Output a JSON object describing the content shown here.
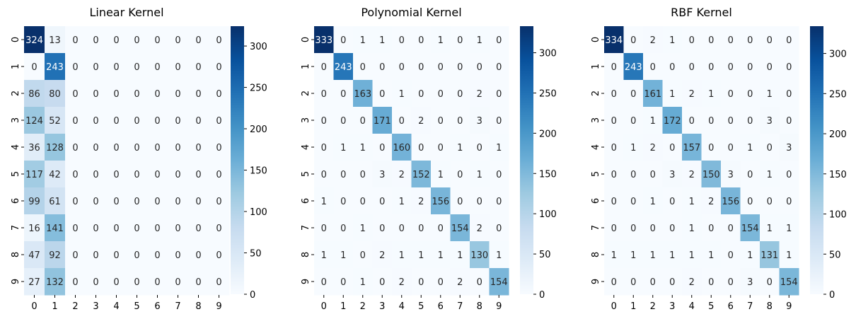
{
  "chart_data": [
    {
      "type": "heatmap",
      "title": "Linear Kernel",
      "xlabel": "",
      "ylabel": "",
      "x_ticks": [
        "0",
        "1",
        "2",
        "3",
        "4",
        "5",
        "6",
        "7",
        "8",
        "9"
      ],
      "y_ticks": [
        "0",
        "1",
        "2",
        "3",
        "4",
        "5",
        "6",
        "7",
        "8",
        "9"
      ],
      "matrix": [
        [
          324,
          13,
          0,
          0,
          0,
          0,
          0,
          0,
          0,
          0
        ],
        [
          0,
          243,
          0,
          0,
          0,
          0,
          0,
          0,
          0,
          0
        ],
        [
          86,
          80,
          0,
          0,
          0,
          0,
          0,
          0,
          0,
          0
        ],
        [
          124,
          52,
          0,
          0,
          0,
          0,
          0,
          0,
          0,
          0
        ],
        [
          36,
          128,
          0,
          0,
          0,
          0,
          0,
          0,
          0,
          0
        ],
        [
          117,
          42,
          0,
          0,
          0,
          0,
          0,
          0,
          0,
          0
        ],
        [
          99,
          61,
          0,
          0,
          0,
          0,
          0,
          0,
          0,
          0
        ],
        [
          16,
          141,
          0,
          0,
          0,
          0,
          0,
          0,
          0,
          0
        ],
        [
          47,
          92,
          0,
          0,
          0,
          0,
          0,
          0,
          0,
          0
        ],
        [
          27,
          132,
          0,
          0,
          0,
          0,
          0,
          0,
          0,
          0
        ]
      ],
      "colorbar": {
        "min": 0,
        "max": 324,
        "ticks": [
          0,
          50,
          100,
          150,
          200,
          250,
          300
        ]
      },
      "colormap": "Blues"
    },
    {
      "type": "heatmap",
      "title": "Polynomial Kernel",
      "xlabel": "",
      "ylabel": "",
      "x_ticks": [
        "0",
        "1",
        "2",
        "3",
        "4",
        "5",
        "6",
        "7",
        "8",
        "9"
      ],
      "y_ticks": [
        "0",
        "1",
        "2",
        "3",
        "4",
        "5",
        "6",
        "7",
        "8",
        "9"
      ],
      "matrix": [
        [
          333,
          0,
          1,
          1,
          0,
          0,
          1,
          0,
          1,
          0
        ],
        [
          0,
          243,
          0,
          0,
          0,
          0,
          0,
          0,
          0,
          0
        ],
        [
          0,
          0,
          163,
          0,
          1,
          0,
          0,
          0,
          2,
          0
        ],
        [
          0,
          0,
          0,
          171,
          0,
          2,
          0,
          0,
          3,
          0
        ],
        [
          0,
          1,
          1,
          0,
          160,
          0,
          0,
          1,
          0,
          1
        ],
        [
          0,
          0,
          0,
          3,
          2,
          152,
          1,
          0,
          1,
          0
        ],
        [
          1,
          0,
          0,
          0,
          1,
          2,
          156,
          0,
          0,
          0
        ],
        [
          0,
          0,
          1,
          0,
          0,
          0,
          0,
          154,
          2,
          0
        ],
        [
          1,
          1,
          0,
          2,
          1,
          1,
          1,
          1,
          130,
          1
        ],
        [
          0,
          0,
          1,
          0,
          2,
          0,
          0,
          2,
          0,
          154
        ]
      ],
      "colorbar": {
        "min": 0,
        "max": 333,
        "ticks": [
          0,
          50,
          100,
          150,
          200,
          250,
          300
        ]
      },
      "colormap": "Blues"
    },
    {
      "type": "heatmap",
      "title": "RBF Kernel",
      "xlabel": "",
      "ylabel": "",
      "x_ticks": [
        "0",
        "1",
        "2",
        "3",
        "4",
        "5",
        "6",
        "7",
        "8",
        "9"
      ],
      "y_ticks": [
        "0",
        "1",
        "2",
        "3",
        "4",
        "5",
        "6",
        "7",
        "8",
        "9"
      ],
      "matrix": [
        [
          334,
          0,
          2,
          1,
          0,
          0,
          0,
          0,
          0,
          0
        ],
        [
          0,
          243,
          0,
          0,
          0,
          0,
          0,
          0,
          0,
          0
        ],
        [
          0,
          0,
          161,
          1,
          2,
          1,
          0,
          0,
          1,
          0
        ],
        [
          0,
          0,
          1,
          172,
          0,
          0,
          0,
          0,
          3,
          0
        ],
        [
          0,
          1,
          2,
          0,
          157,
          0,
          0,
          1,
          0,
          3
        ],
        [
          0,
          0,
          0,
          3,
          2,
          150,
          3,
          0,
          1,
          0
        ],
        [
          0,
          0,
          1,
          0,
          1,
          2,
          156,
          0,
          0,
          0
        ],
        [
          0,
          0,
          0,
          0,
          1,
          0,
          0,
          154,
          1,
          1
        ],
        [
          1,
          1,
          1,
          1,
          1,
          1,
          0,
          1,
          131,
          1
        ],
        [
          0,
          0,
          0,
          0,
          2,
          0,
          0,
          3,
          0,
          154
        ]
      ],
      "colorbar": {
        "min": 0,
        "max": 334,
        "ticks": [
          0,
          50,
          100,
          150,
          200,
          250,
          300
        ]
      },
      "colormap": "Blues"
    }
  ],
  "colors": {
    "blues_low": "#f7fbff",
    "blues_high": "#08306b",
    "axis_text": "#000000"
  }
}
